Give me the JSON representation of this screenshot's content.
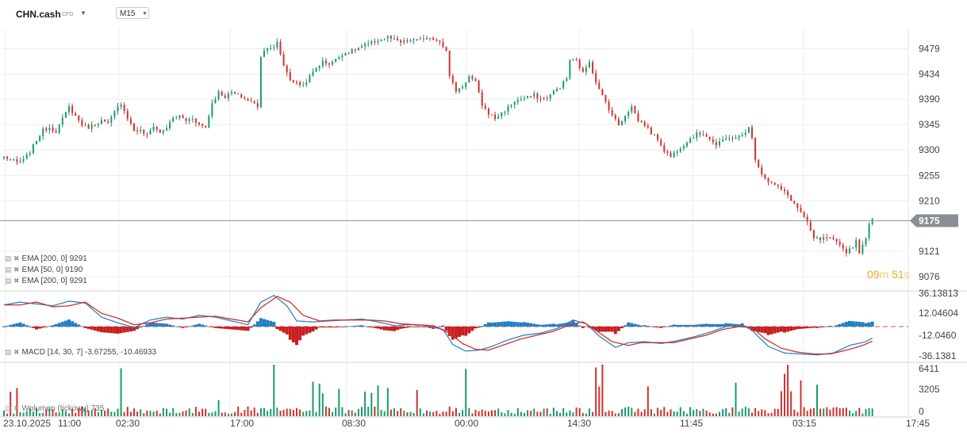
{
  "header": {
    "symbol": "CHN.cash",
    "symbol_type": "CFD",
    "timeframe": "M15"
  },
  "colors": {
    "bull": "#1a9a6c",
    "bear": "#d0312d",
    "macd_line": "#2a86c9",
    "signal_line": "#d0312d",
    "hist_pos": "#1f7fc4",
    "hist_neg": "#c81e1e",
    "price_tag": "#8a8f94",
    "grid": "#ececec"
  },
  "legend": {
    "ema1": "EMA [200, 0] 9291",
    "ema2": "EMA [50, 0] 9190",
    "ema3": "EMA [200, 0] 9291",
    "macd": "MACD [14, 30, 7] -3.67255, -10.46933",
    "volume": "Wolumen (tickowy) 735"
  },
  "countdown": {
    "min": "09",
    "min_unit": "m",
    "sec": "51",
    "sec_unit": "s"
  },
  "chart_data": [
    {
      "type": "candlestick",
      "ticks": [
        9479,
        9434,
        9390,
        9345,
        9300,
        9255,
        9210,
        9121,
        9076
      ],
      "ylim": [
        9052,
        9515
      ],
      "current_price": 9175,
      "current_price_label": "9175",
      "close_path": [
        [
          0,
          9288
        ],
        [
          2,
          9283
        ],
        [
          4,
          9278
        ],
        [
          6,
          9282
        ],
        [
          8,
          9297
        ],
        [
          10,
          9318
        ],
        [
          12,
          9335
        ],
        [
          14,
          9340
        ],
        [
          16,
          9333
        ],
        [
          18,
          9355
        ],
        [
          20,
          9376
        ],
        [
          22,
          9360
        ],
        [
          24,
          9345
        ],
        [
          26,
          9340
        ],
        [
          28,
          9346
        ],
        [
          30,
          9352
        ],
        [
          32,
          9346
        ],
        [
          34,
          9367
        ],
        [
          36,
          9383
        ],
        [
          38,
          9357
        ],
        [
          40,
          9335
        ],
        [
          42,
          9334
        ],
        [
          44,
          9326
        ],
        [
          46,
          9343
        ],
        [
          48,
          9330
        ],
        [
          50,
          9340
        ],
        [
          52,
          9356
        ],
        [
          54,
          9360
        ],
        [
          56,
          9352
        ],
        [
          58,
          9357
        ],
        [
          60,
          9345
        ],
        [
          62,
          9340
        ],
        [
          64,
          9383
        ],
        [
          66,
          9402
        ],
        [
          68,
          9394
        ],
        [
          70,
          9402
        ],
        [
          72,
          9397
        ],
        [
          74,
          9390
        ],
        [
          76,
          9385
        ],
        [
          78,
          9378
        ],
        [
          79,
          9467
        ],
        [
          81,
          9483
        ],
        [
          83,
          9480
        ],
        [
          84,
          9490
        ],
        [
          86,
          9450
        ],
        [
          88,
          9425
        ],
        [
          90,
          9418
        ],
        [
          92,
          9415
        ],
        [
          94,
          9430
        ],
        [
          96,
          9445
        ],
        [
          98,
          9456
        ],
        [
          100,
          9453
        ],
        [
          102,
          9460
        ],
        [
          104,
          9470
        ],
        [
          106,
          9473
        ],
        [
          108,
          9478
        ],
        [
          110,
          9483
        ],
        [
          112,
          9487
        ],
        [
          114,
          9492
        ],
        [
          116,
          9496
        ],
        [
          118,
          9500
        ],
        [
          120,
          9495
        ],
        [
          122,
          9490
        ],
        [
          124,
          9493
        ],
        [
          126,
          9494
        ],
        [
          128,
          9497
        ],
        [
          130,
          9495
        ],
        [
          132,
          9497
        ],
        [
          134,
          9492
        ],
        [
          136,
          9478
        ],
        [
          137,
          9430
        ],
        [
          139,
          9405
        ],
        [
          141,
          9413
        ],
        [
          143,
          9430
        ],
        [
          145,
          9420
        ],
        [
          147,
          9380
        ],
        [
          149,
          9365
        ],
        [
          151,
          9356
        ],
        [
          153,
          9365
        ],
        [
          155,
          9375
        ],
        [
          157,
          9386
        ],
        [
          159,
          9390
        ],
        [
          161,
          9393
        ],
        [
          163,
          9397
        ],
        [
          165,
          9390
        ],
        [
          167,
          9393
        ],
        [
          169,
          9403
        ],
        [
          171,
          9412
        ],
        [
          173,
          9427
        ],
        [
          174,
          9460
        ],
        [
          176,
          9458
        ],
        [
          178,
          9436
        ],
        [
          180,
          9458
        ],
        [
          181,
          9438
        ],
        [
          183,
          9406
        ],
        [
          185,
          9385
        ],
        [
          187,
          9362
        ],
        [
          189,
          9344
        ],
        [
          191,
          9362
        ],
        [
          193,
          9377
        ],
        [
          195,
          9352
        ],
        [
          197,
          9345
        ],
        [
          199,
          9330
        ],
        [
          201,
          9320
        ],
        [
          203,
          9300
        ],
        [
          205,
          9288
        ],
        [
          207,
          9300
        ],
        [
          209,
          9310
        ],
        [
          211,
          9320
        ],
        [
          213,
          9328
        ],
        [
          215,
          9330
        ],
        [
          217,
          9320
        ],
        [
          219,
          9308
        ],
        [
          221,
          9317
        ],
        [
          223,
          9323
        ],
        [
          225,
          9320
        ],
        [
          227,
          9327
        ],
        [
          229,
          9339
        ],
        [
          230,
          9320
        ],
        [
          231,
          9285
        ],
        [
          233,
          9258
        ],
        [
          235,
          9245
        ],
        [
          237,
          9238
        ],
        [
          239,
          9230
        ],
        [
          241,
          9220
        ],
        [
          243,
          9205
        ],
        [
          245,
          9190
        ],
        [
          247,
          9170
        ],
        [
          249,
          9143
        ],
        [
          251,
          9142
        ],
        [
          253,
          9145
        ],
        [
          255,
          9140
        ],
        [
          257,
          9130
        ],
        [
          259,
          9120
        ],
        [
          261,
          9130
        ],
        [
          262,
          9140
        ],
        [
          263,
          9120
        ],
        [
          264,
          9130
        ],
        [
          265,
          9147
        ],
        [
          266,
          9167
        ],
        [
          267,
          9176
        ]
      ],
      "x_ticks": [
        "23.10.2025",
        "11:00",
        "02:30",
        "17:00",
        "08:30",
        "00:00",
        "14:30",
        "11:45",
        "03:15",
        "17:45"
      ]
    },
    {
      "type": "macd",
      "ticks": [
        "36.13813",
        "12.04604",
        "-12.0460",
        "-36.1381"
      ],
      "ylim": [
        -36.1381,
        36.13813
      ],
      "macd": [
        [
          0,
          23
        ],
        [
          5,
          26
        ],
        [
          10,
          24
        ],
        [
          15,
          22
        ],
        [
          20,
          27
        ],
        [
          25,
          25
        ],
        [
          30,
          10
        ],
        [
          35,
          4
        ],
        [
          40,
          -1
        ],
        [
          45,
          7
        ],
        [
          50,
          10
        ],
        [
          55,
          8
        ],
        [
          60,
          12
        ],
        [
          65,
          10
        ],
        [
          70,
          6
        ],
        [
          75,
          2
        ],
        [
          79,
          26
        ],
        [
          83,
          33
        ],
        [
          87,
          22
        ],
        [
          90,
          6
        ],
        [
          95,
          5
        ],
        [
          100,
          6
        ],
        [
          105,
          7
        ],
        [
          110,
          8
        ],
        [
          115,
          5
        ],
        [
          120,
          1
        ],
        [
          125,
          2
        ],
        [
          130,
          1
        ],
        [
          135,
          -3
        ],
        [
          138,
          -19
        ],
        [
          142,
          -26
        ],
        [
          146,
          -25
        ],
        [
          150,
          -21
        ],
        [
          155,
          -14
        ],
        [
          160,
          -9
        ],
        [
          165,
          -7
        ],
        [
          170,
          -2
        ],
        [
          175,
          7
        ],
        [
          179,
          3
        ],
        [
          183,
          -10
        ],
        [
          188,
          -22
        ],
        [
          192,
          -17
        ],
        [
          197,
          -16
        ],
        [
          202,
          -18
        ],
        [
          207,
          -15
        ],
        [
          212,
          -11
        ],
        [
          217,
          -6
        ],
        [
          222,
          0
        ],
        [
          227,
          2
        ],
        [
          230,
          -4
        ],
        [
          235,
          -21
        ],
        [
          240,
          -28
        ],
        [
          245,
          -29
        ],
        [
          250,
          -30
        ],
        [
          255,
          -28
        ],
        [
          260,
          -20
        ],
        [
          265,
          -16
        ],
        [
          268,
          -10
        ]
      ],
      "signal": [
        [
          0,
          23
        ],
        [
          5,
          23
        ],
        [
          10,
          26
        ],
        [
          15,
          21
        ],
        [
          20,
          22
        ],
        [
          25,
          26
        ],
        [
          30,
          14
        ],
        [
          35,
          9
        ],
        [
          40,
          2
        ],
        [
          45,
          4
        ],
        [
          50,
          8
        ],
        [
          55,
          9
        ],
        [
          60,
          10
        ],
        [
          65,
          11
        ],
        [
          70,
          8
        ],
        [
          75,
          5
        ],
        [
          79,
          20
        ],
        [
          84,
          32
        ],
        [
          88,
          26
        ],
        [
          92,
          12
        ],
        [
          97,
          6
        ],
        [
          102,
          7
        ],
        [
          107,
          7
        ],
        [
          112,
          7
        ],
        [
          117,
          6
        ],
        [
          122,
          3
        ],
        [
          127,
          2
        ],
        [
          132,
          1
        ],
        [
          137,
          -7
        ],
        [
          141,
          -18
        ],
        [
          145,
          -24
        ],
        [
          149,
          -25
        ],
        [
          154,
          -19
        ],
        [
          159,
          -13
        ],
        [
          164,
          -9
        ],
        [
          169,
          -5
        ],
        [
          174,
          2
        ],
        [
          178,
          5
        ],
        [
          182,
          -4
        ],
        [
          187,
          -16
        ],
        [
          192,
          -20
        ],
        [
          196,
          -17
        ],
        [
          201,
          -17
        ],
        [
          206,
          -17
        ],
        [
          211,
          -13
        ],
        [
          216,
          -9
        ],
        [
          221,
          -3
        ],
        [
          226,
          0
        ],
        [
          230,
          -1
        ],
        [
          234,
          -13
        ],
        [
          239,
          -23
        ],
        [
          244,
          -27
        ],
        [
          249,
          -29
        ],
        [
          254,
          -29
        ],
        [
          259,
          -25
        ],
        [
          264,
          -20
        ],
        [
          268,
          -14
        ]
      ]
    },
    {
      "type": "volume",
      "ticks": [
        "6411",
        "3205",
        "0"
      ],
      "ylim": [
        0,
        6411
      ],
      "last_volume": 735
    }
  ]
}
